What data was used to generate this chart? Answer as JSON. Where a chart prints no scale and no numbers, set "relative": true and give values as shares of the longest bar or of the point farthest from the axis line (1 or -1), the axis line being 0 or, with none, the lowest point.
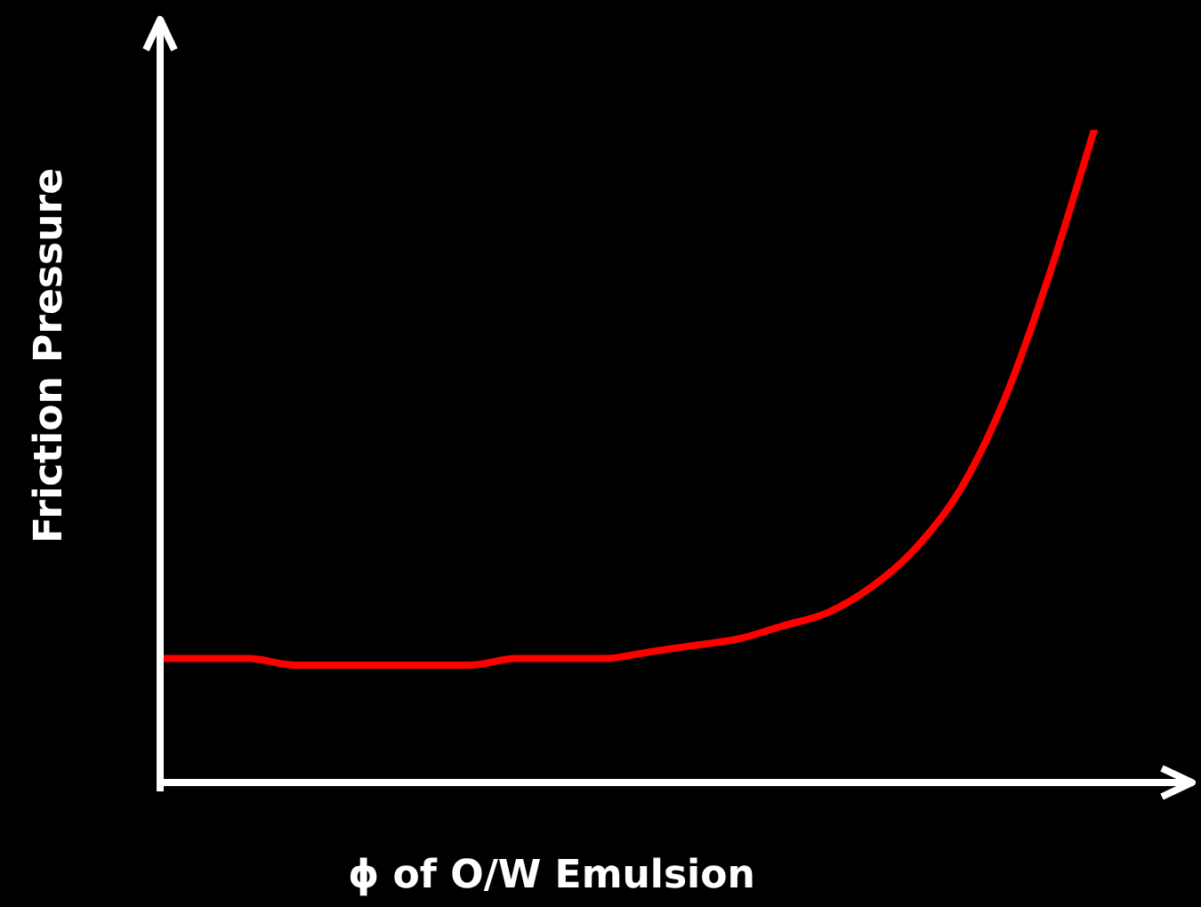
{
  "chart_data": {
    "type": "line",
    "relative": true,
    "xlabel": "ϕ of O/W Emulsion",
    "ylabel": "Friction Pressure",
    "categories": [
      null,
      null,
      null,
      null,
      null,
      null,
      null,
      null,
      null,
      null,
      null,
      null,
      null,
      null,
      null,
      null,
      null,
      null,
      null,
      null,
      null,
      null
    ],
    "series": [
      {
        "color": "#ff0000",
        "values": [
          0.19,
          0.19,
          0.19,
          0.18,
          0.18,
          0.18,
          0.18,
          0.18,
          0.19,
          0.19,
          0.19,
          0.2,
          0.21,
          0.22,
          0.24,
          0.26,
          0.3,
          0.36,
          0.45,
          0.59,
          0.78,
          1
        ]
      }
    ],
    "marker": "none",
    "line_style": "solid",
    "grid": false,
    "legend": false
  }
}
